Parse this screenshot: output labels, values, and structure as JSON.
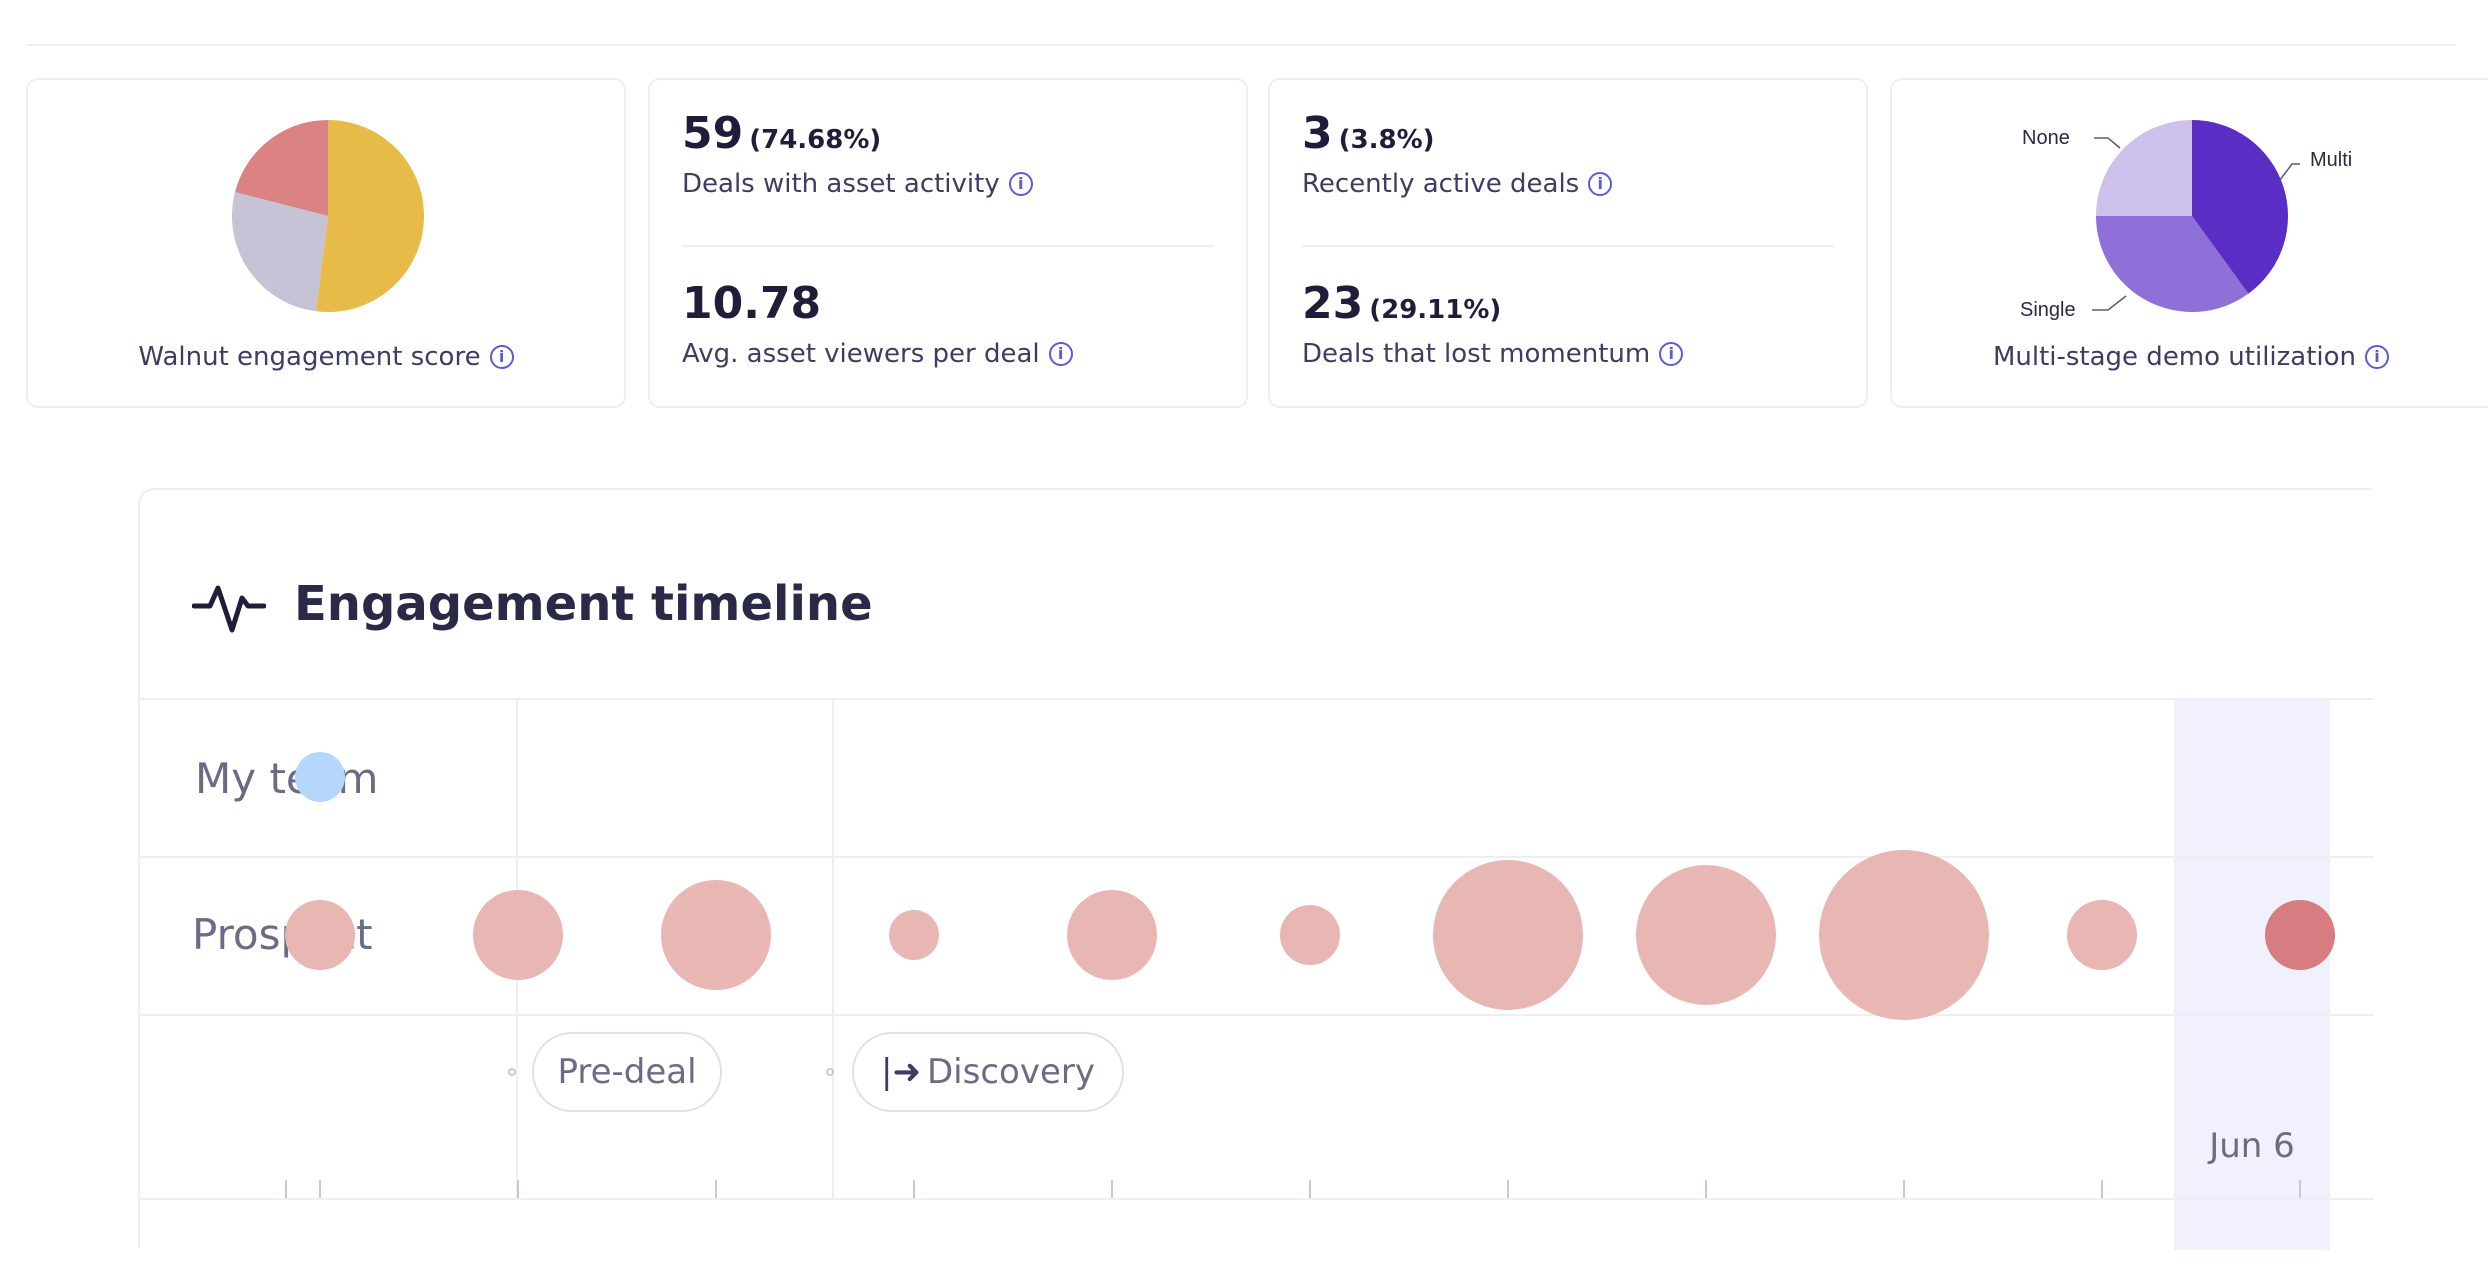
{
  "cards": {
    "engagement": {
      "label": "Walnut engagement score",
      "slices": [
        {
          "value": 52,
          "color": "#e6bb48"
        },
        {
          "value": 27,
          "color": "#c7c3d6"
        },
        {
          "value": 21,
          "color": "#db8283"
        }
      ]
    },
    "asset": {
      "value1": "59",
      "pct1": "(74.68%)",
      "label1": "Deals with asset activity",
      "value2": "10.78",
      "label2": "Avg. asset viewers per deal"
    },
    "active": {
      "value1": "3",
      "pct1": "(3.8%)",
      "label1": "Recently active deals",
      "value2": "23",
      "pct2": "(29.11%)",
      "label2": "Deals that lost momentum"
    },
    "demo": {
      "label": "Multi-stage demo utilization",
      "legend": {
        "none": "None",
        "multi": "Multi",
        "single": "Single"
      },
      "slices": [
        {
          "name": "Multi",
          "value": 40,
          "color": "#5a2dc4"
        },
        {
          "name": "Single",
          "value": 35,
          "color": "#8e70d8"
        },
        {
          "name": "None",
          "value": 25,
          "color": "#cdc0ea"
        }
      ]
    }
  },
  "timeline": {
    "title": "Engagement timeline",
    "rows": {
      "team": "My team",
      "prospect": "Prospect"
    },
    "stages": {
      "predeal": "Pre-deal",
      "discovery": "Discovery"
    },
    "date_label": "Jun 6",
    "team_events": [
      {
        "slot": 1,
        "size": 1
      }
    ],
    "prospect_events": [
      {
        "slot": 1,
        "size": 3
      },
      {
        "slot": 2,
        "size": 5
      },
      {
        "slot": 3,
        "size": 7
      },
      {
        "slot": 4,
        "size": 1
      },
      {
        "slot": 5,
        "size": 5
      },
      {
        "slot": 6,
        "size": 2
      },
      {
        "slot": 7,
        "size": 11
      },
      {
        "slot": 8,
        "size": 10
      },
      {
        "slot": 9,
        "size": 13
      },
      {
        "slot": 10,
        "size": 3
      },
      {
        "slot": 11,
        "size": 3,
        "highlight": true
      }
    ],
    "colors": {
      "team": "#b6d6fb",
      "prospect": "#e8b6b3",
      "prospect_highlight": "#d77c80"
    }
  }
}
